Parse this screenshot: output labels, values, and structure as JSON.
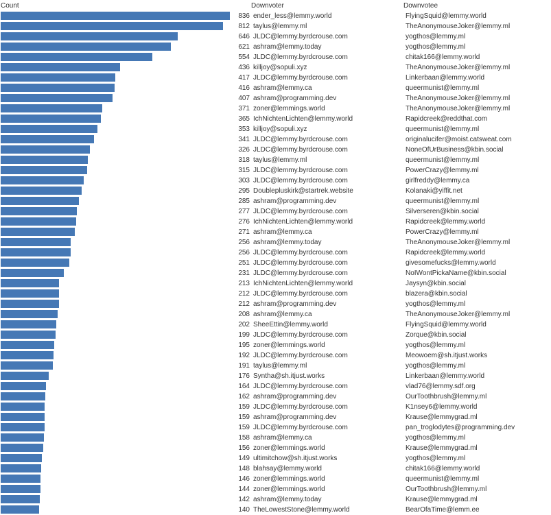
{
  "colors": {
    "bar": "#4578b5",
    "text": "#333333",
    "background": "#ffffff"
  },
  "chart_data": {
    "type": "bar",
    "orientation": "horizontal",
    "xlabel": "Count",
    "columns": [
      "Count",
      "Downvoter",
      "Downvotee"
    ],
    "xlim": [
      0,
      836
    ],
    "grid": false,
    "legend": "none",
    "rows": [
      {
        "count": 836,
        "downvoter": "ender_less@lemmy.world",
        "downvotee": "FlyingSquid@lemmy.world"
      },
      {
        "count": 812,
        "downvoter": "taylus@lemmy.ml",
        "downvotee": "TheAnonymouseJoker@lemmy.ml"
      },
      {
        "count": 646,
        "downvoter": "JLDC@lemmy.byrdcrouse.com",
        "downvotee": "yogthos@lemmy.ml"
      },
      {
        "count": 621,
        "downvoter": "ashram@lemmy.today",
        "downvotee": "yogthos@lemmy.ml"
      },
      {
        "count": 554,
        "downvoter": "JLDC@lemmy.byrdcrouse.com",
        "downvotee": "chitak166@lemmy.world"
      },
      {
        "count": 436,
        "downvoter": "killjoy@sopuli.xyz",
        "downvotee": "TheAnonymouseJoker@lemmy.ml"
      },
      {
        "count": 417,
        "downvoter": "JLDC@lemmy.byrdcrouse.com",
        "downvotee": "Linkerbaan@lemmy.world"
      },
      {
        "count": 416,
        "downvoter": "ashram@lemmy.ca",
        "downvotee": "queermunist@lemmy.ml"
      },
      {
        "count": 407,
        "downvoter": "ashram@programming.dev",
        "downvotee": "TheAnonymouseJoker@lemmy.ml"
      },
      {
        "count": 371,
        "downvoter": "zoner@lemmings.world",
        "downvotee": "TheAnonymouseJoker@lemmy.ml"
      },
      {
        "count": 365,
        "downvoter": "IchNichtenLichten@lemmy.world",
        "downvotee": "Rapidcreek@reddthat.com"
      },
      {
        "count": 353,
        "downvoter": "killjoy@sopuli.xyz",
        "downvotee": "queermunist@lemmy.ml"
      },
      {
        "count": 341,
        "downvoter": "JLDC@lemmy.byrdcrouse.com",
        "downvotee": "originalucifer@moist.catsweat.com"
      },
      {
        "count": 326,
        "downvoter": "JLDC@lemmy.byrdcrouse.com",
        "downvotee": "NoneOfUrBusiness@kbin.social"
      },
      {
        "count": 318,
        "downvoter": "taylus@lemmy.ml",
        "downvotee": "queermunist@lemmy.ml"
      },
      {
        "count": 315,
        "downvoter": "JLDC@lemmy.byrdcrouse.com",
        "downvotee": "PowerCrazy@lemmy.ml"
      },
      {
        "count": 303,
        "downvoter": "JLDC@lemmy.byrdcrouse.com",
        "downvotee": "girlfreddy@lemmy.ca"
      },
      {
        "count": 295,
        "downvoter": "Doublepluskirk@startrek.website",
        "downvotee": "Kolanaki@yiffit.net"
      },
      {
        "count": 285,
        "downvoter": "ashram@programming.dev",
        "downvotee": "queermunist@lemmy.ml"
      },
      {
        "count": 277,
        "downvoter": "JLDC@lemmy.byrdcrouse.com",
        "downvotee": "Silverseren@kbin.social"
      },
      {
        "count": 276,
        "downvoter": "IchNichtenLichten@lemmy.world",
        "downvotee": "Rapidcreek@lemmy.world"
      },
      {
        "count": 271,
        "downvoter": "ashram@lemmy.ca",
        "downvotee": "PowerCrazy@lemmy.ml"
      },
      {
        "count": 256,
        "downvoter": "ashram@lemmy.today",
        "downvotee": "TheAnonymouseJoker@lemmy.ml"
      },
      {
        "count": 256,
        "downvoter": "JLDC@lemmy.byrdcrouse.com",
        "downvotee": "Rapidcreek@lemmy.world"
      },
      {
        "count": 251,
        "downvoter": "JLDC@lemmy.byrdcrouse.com",
        "downvotee": "givesomefucks@lemmy.world"
      },
      {
        "count": 231,
        "downvoter": "JLDC@lemmy.byrdcrouse.com",
        "downvotee": "NoIWontPickaName@kbin.social"
      },
      {
        "count": 213,
        "downvoter": "IchNichtenLichten@lemmy.world",
        "downvotee": "Jaysyn@kbin.social"
      },
      {
        "count": 212,
        "downvoter": "JLDC@lemmy.byrdcrouse.com",
        "downvotee": "blazera@kbin.social"
      },
      {
        "count": 212,
        "downvoter": "ashram@programming.dev",
        "downvotee": "yogthos@lemmy.ml"
      },
      {
        "count": 208,
        "downvoter": "ashram@lemmy.ca",
        "downvotee": "TheAnonymouseJoker@lemmy.ml"
      },
      {
        "count": 202,
        "downvoter": "SheeEttin@lemmy.world",
        "downvotee": "FlyingSquid@lemmy.world"
      },
      {
        "count": 199,
        "downvoter": "JLDC@lemmy.byrdcrouse.com",
        "downvotee": "Zorque@kbin.social"
      },
      {
        "count": 195,
        "downvoter": "zoner@lemmings.world",
        "downvotee": "yogthos@lemmy.ml"
      },
      {
        "count": 192,
        "downvoter": "JLDC@lemmy.byrdcrouse.com",
        "downvotee": "Meowoem@sh.itjust.works"
      },
      {
        "count": 191,
        "downvoter": "taylus@lemmy.ml",
        "downvotee": "yogthos@lemmy.ml"
      },
      {
        "count": 176,
        "downvoter": "Syntha@sh.itjust.works",
        "downvotee": "Linkerbaan@lemmy.world"
      },
      {
        "count": 164,
        "downvoter": "JLDC@lemmy.byrdcrouse.com",
        "downvotee": "vlad76@lemmy.sdf.org"
      },
      {
        "count": 162,
        "downvoter": "ashram@programming.dev",
        "downvotee": "OurToothbrush@lemmy.ml"
      },
      {
        "count": 159,
        "downvoter": "JLDC@lemmy.byrdcrouse.com",
        "downvotee": "K1nsey6@lemmy.world"
      },
      {
        "count": 159,
        "downvoter": "ashram@programming.dev",
        "downvotee": "Krause@lemmygrad.ml"
      },
      {
        "count": 159,
        "downvoter": "JLDC@lemmy.byrdcrouse.com",
        "downvotee": "pan_troglodytes@programming.dev"
      },
      {
        "count": 158,
        "downvoter": "ashram@lemmy.ca",
        "downvotee": "yogthos@lemmy.ml"
      },
      {
        "count": 156,
        "downvoter": "zoner@lemmings.world",
        "downvotee": "Krause@lemmygrad.ml"
      },
      {
        "count": 149,
        "downvoter": "ultimitchow@sh.itjust.works",
        "downvotee": "yogthos@lemmy.ml"
      },
      {
        "count": 148,
        "downvoter": "blahsay@lemmy.world",
        "downvotee": "chitak166@lemmy.world"
      },
      {
        "count": 146,
        "downvoter": "zoner@lemmings.world",
        "downvotee": "queermunist@lemmy.ml"
      },
      {
        "count": 144,
        "downvoter": "zoner@lemmings.world",
        "downvotee": "OurToothbrush@lemmy.ml"
      },
      {
        "count": 142,
        "downvoter": "ashram@lemmy.today",
        "downvotee": "Krause@lemmygrad.ml"
      },
      {
        "count": 140,
        "downvoter": "TheLowestStone@lemmy.world",
        "downvotee": "BearOfaTime@lemm.ee"
      }
    ]
  }
}
